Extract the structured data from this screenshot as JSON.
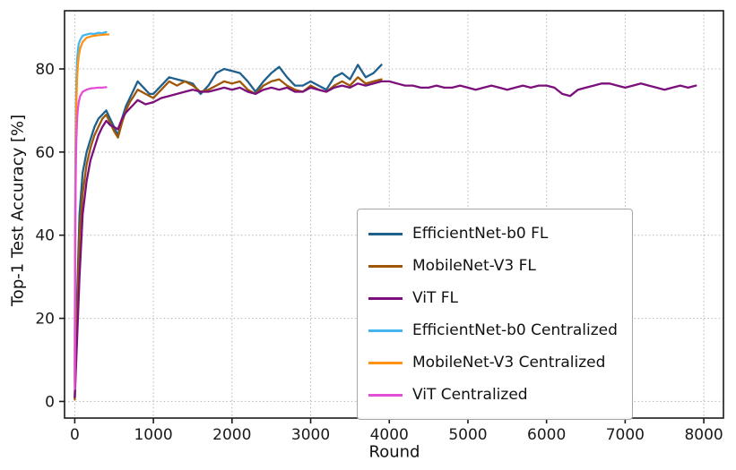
{
  "figure": {
    "xlabel": "Round",
    "ylabel": "Top-1 Test Accuracy [%]",
    "background_color": "#ffffff",
    "spine_color": "#1a1a1a",
    "grid_color": "#b5b5b5",
    "tick_label_color": "#1a1a1a"
  },
  "chart_data": {
    "type": "line",
    "title": "",
    "xlabel": "Round",
    "ylabel": "Top-1 Test Accuracy [%]",
    "xlim": [
      -130,
      8250
    ],
    "ylim": [
      -4,
      94
    ],
    "xticks": [
      0,
      1000,
      2000,
      3000,
      4000,
      5000,
      6000,
      7000,
      8000
    ],
    "yticks": [
      0,
      20,
      40,
      60,
      80
    ],
    "grid": true,
    "grid_style": "dotted",
    "legend_position": "center-right",
    "series": [
      {
        "name": "EfficientNet-b0 FL",
        "color": "#20608d",
        "points": [
          [
            0,
            1
          ],
          [
            30,
            25
          ],
          [
            60,
            45
          ],
          [
            100,
            55
          ],
          [
            150,
            60
          ],
          [
            200,
            63
          ],
          [
            250,
            66
          ],
          [
            300,
            68
          ],
          [
            350,
            69
          ],
          [
            400,
            70
          ],
          [
            450,
            68
          ],
          [
            500,
            66
          ],
          [
            550,
            64
          ],
          [
            600,
            68
          ],
          [
            650,
            71
          ],
          [
            700,
            73
          ],
          [
            750,
            75
          ],
          [
            800,
            77
          ],
          [
            850,
            76
          ],
          [
            900,
            75
          ],
          [
            950,
            74
          ],
          [
            1000,
            74
          ],
          [
            1100,
            76
          ],
          [
            1200,
            78
          ],
          [
            1300,
            77.5
          ],
          [
            1400,
            77
          ],
          [
            1500,
            76.5
          ],
          [
            1600,
            74
          ],
          [
            1700,
            76
          ],
          [
            1800,
            79
          ],
          [
            1900,
            80
          ],
          [
            2000,
            79.5
          ],
          [
            2100,
            79
          ],
          [
            2200,
            77
          ],
          [
            2300,
            74.5
          ],
          [
            2400,
            77
          ],
          [
            2500,
            79
          ],
          [
            2600,
            80.5
          ],
          [
            2700,
            78
          ],
          [
            2800,
            76
          ],
          [
            2900,
            76
          ],
          [
            3000,
            77
          ],
          [
            3100,
            76
          ],
          [
            3200,
            75
          ],
          [
            3300,
            78
          ],
          [
            3400,
            79
          ],
          [
            3500,
            77.5
          ],
          [
            3600,
            81
          ],
          [
            3700,
            78
          ],
          [
            3800,
            79
          ],
          [
            3900,
            81
          ]
        ]
      },
      {
        "name": "MobileNet-V3 FL",
        "color": "#9e5607",
        "points": [
          [
            0,
            0.5
          ],
          [
            30,
            20
          ],
          [
            60,
            40
          ],
          [
            100,
            50
          ],
          [
            150,
            57
          ],
          [
            200,
            61
          ],
          [
            250,
            64
          ],
          [
            300,
            66
          ],
          [
            350,
            68
          ],
          [
            400,
            69
          ],
          [
            450,
            67
          ],
          [
            500,
            65
          ],
          [
            550,
            63.5
          ],
          [
            600,
            67
          ],
          [
            650,
            70
          ],
          [
            700,
            72
          ],
          [
            750,
            73.5
          ],
          [
            800,
            75
          ],
          [
            850,
            74.5
          ],
          [
            900,
            74
          ],
          [
            950,
            73.5
          ],
          [
            1000,
            73
          ],
          [
            1100,
            75
          ],
          [
            1200,
            77
          ],
          [
            1300,
            76
          ],
          [
            1400,
            77
          ],
          [
            1500,
            76
          ],
          [
            1600,
            74.5
          ],
          [
            1700,
            75
          ],
          [
            1800,
            76
          ],
          [
            1900,
            77
          ],
          [
            2000,
            76.5
          ],
          [
            2100,
            77
          ],
          [
            2200,
            75
          ],
          [
            2300,
            74
          ],
          [
            2400,
            76
          ],
          [
            2500,
            77
          ],
          [
            2600,
            77.5
          ],
          [
            2700,
            76
          ],
          [
            2800,
            75
          ],
          [
            2900,
            74.5
          ],
          [
            3000,
            76
          ],
          [
            3100,
            75
          ],
          [
            3200,
            74.5
          ],
          [
            3300,
            76
          ],
          [
            3400,
            77
          ],
          [
            3500,
            76
          ],
          [
            3600,
            78
          ],
          [
            3700,
            76.5
          ],
          [
            3800,
            77
          ],
          [
            3900,
            77.5
          ]
        ]
      },
      {
        "name": "ViT FL",
        "color": "#7b0f7b",
        "points": [
          [
            0,
            1
          ],
          [
            30,
            15
          ],
          [
            60,
            30
          ],
          [
            100,
            45
          ],
          [
            150,
            53
          ],
          [
            200,
            58
          ],
          [
            250,
            61
          ],
          [
            300,
            64
          ],
          [
            350,
            66
          ],
          [
            400,
            67.5
          ],
          [
            450,
            66.5
          ],
          [
            500,
            66
          ],
          [
            550,
            65.5
          ],
          [
            600,
            68
          ],
          [
            650,
            69.5
          ],
          [
            700,
            70.5
          ],
          [
            750,
            71.5
          ],
          [
            800,
            72.5
          ],
          [
            850,
            72
          ],
          [
            900,
            71.5
          ],
          [
            1000,
            72
          ],
          [
            1100,
            73
          ],
          [
            1200,
            73.5
          ],
          [
            1300,
            74
          ],
          [
            1400,
            74.5
          ],
          [
            1500,
            75
          ],
          [
            1600,
            74.5
          ],
          [
            1700,
            74.5
          ],
          [
            1800,
            75
          ],
          [
            1900,
            75.5
          ],
          [
            2000,
            75
          ],
          [
            2100,
            75.5
          ],
          [
            2200,
            74.5
          ],
          [
            2300,
            74
          ],
          [
            2400,
            75
          ],
          [
            2500,
            75.5
          ],
          [
            2600,
            75
          ],
          [
            2700,
            75.5
          ],
          [
            2800,
            74.5
          ],
          [
            2900,
            74.5
          ],
          [
            3000,
            75.5
          ],
          [
            3100,
            75
          ],
          [
            3200,
            74.5
          ],
          [
            3300,
            75.5
          ],
          [
            3400,
            76
          ],
          [
            3500,
            75.5
          ],
          [
            3600,
            76.5
          ],
          [
            3700,
            76
          ],
          [
            3800,
            76.5
          ],
          [
            3900,
            77
          ],
          [
            4000,
            77
          ],
          [
            4100,
            76.5
          ],
          [
            4200,
            76
          ],
          [
            4300,
            76
          ],
          [
            4400,
            75.5
          ],
          [
            4500,
            75.5
          ],
          [
            4600,
            76
          ],
          [
            4700,
            75.5
          ],
          [
            4800,
            75.5
          ],
          [
            4900,
            76
          ],
          [
            5000,
            75.5
          ],
          [
            5100,
            75
          ],
          [
            5200,
            75.5
          ],
          [
            5300,
            76
          ],
          [
            5400,
            75.5
          ],
          [
            5500,
            75
          ],
          [
            5600,
            75.5
          ],
          [
            5700,
            76
          ],
          [
            5800,
            75.5
          ],
          [
            5900,
            76
          ],
          [
            6000,
            76
          ],
          [
            6100,
            75.5
          ],
          [
            6200,
            74
          ],
          [
            6300,
            73.5
          ],
          [
            6400,
            75
          ],
          [
            6500,
            75.5
          ],
          [
            6600,
            76
          ],
          [
            6700,
            76.5
          ],
          [
            6800,
            76.5
          ],
          [
            6900,
            76
          ],
          [
            7000,
            75.5
          ],
          [
            7100,
            76
          ],
          [
            7200,
            76.5
          ],
          [
            7300,
            76
          ],
          [
            7400,
            75.5
          ],
          [
            7500,
            75
          ],
          [
            7600,
            75.5
          ],
          [
            7700,
            76
          ],
          [
            7800,
            75.5
          ],
          [
            7900,
            76
          ]
        ]
      },
      {
        "name": "EfficientNet-b0 Centralized",
        "color": "#45b5ef",
        "points": [
          [
            0,
            5
          ],
          [
            5,
            45
          ],
          [
            10,
            62
          ],
          [
            15,
            71
          ],
          [
            20,
            77
          ],
          [
            30,
            82
          ],
          [
            40,
            84.5
          ],
          [
            50,
            86
          ],
          [
            70,
            87
          ],
          [
            100,
            88
          ],
          [
            150,
            88.3
          ],
          [
            200,
            88.5
          ],
          [
            250,
            88.4
          ],
          [
            300,
            88.7
          ],
          [
            350,
            88.6
          ],
          [
            400,
            88.9
          ]
        ]
      },
      {
        "name": "MobileNet-V3 Centralized",
        "color": "#ff9214",
        "points": [
          [
            0,
            4
          ],
          [
            5,
            38
          ],
          [
            10,
            55
          ],
          [
            15,
            65
          ],
          [
            20,
            72
          ],
          [
            30,
            78
          ],
          [
            40,
            81
          ],
          [
            50,
            83
          ],
          [
            70,
            85
          ],
          [
            100,
            86.5
          ],
          [
            150,
            87.5
          ],
          [
            200,
            87.8
          ],
          [
            250,
            88
          ],
          [
            300,
            88.1
          ],
          [
            350,
            88.2
          ],
          [
            400,
            88.3
          ],
          [
            430,
            88.3
          ]
        ]
      },
      {
        "name": "ViT Centralized",
        "color": "#e44fd5",
        "points": [
          [
            0,
            3
          ],
          [
            5,
            35
          ],
          [
            10,
            50
          ],
          [
            15,
            58
          ],
          [
            20,
            63
          ],
          [
            30,
            68
          ],
          [
            40,
            70.5
          ],
          [
            50,
            72
          ],
          [
            70,
            73.5
          ],
          [
            100,
            74.5
          ],
          [
            150,
            75
          ],
          [
            200,
            75.3
          ],
          [
            250,
            75.4
          ],
          [
            300,
            75.5
          ],
          [
            350,
            75.5
          ],
          [
            400,
            75.6
          ]
        ]
      }
    ]
  }
}
